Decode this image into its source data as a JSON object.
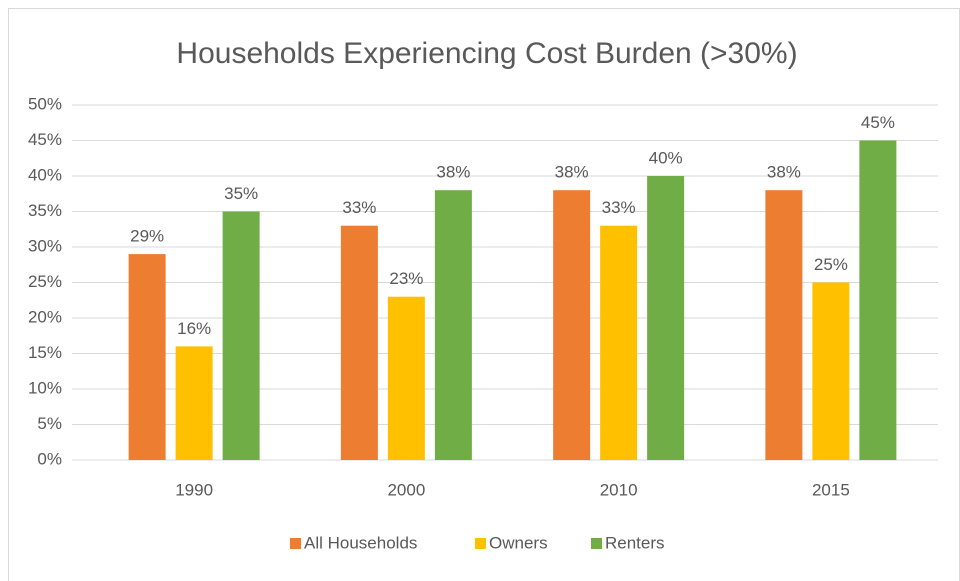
{
  "chart_data": {
    "type": "bar",
    "title": "Households Experiencing Cost Burden (>30%)",
    "categories": [
      "1990",
      "2000",
      "2010",
      "2015"
    ],
    "series": [
      {
        "name": "All Households",
        "color": "#ed7d31",
        "values": [
          29,
          33,
          38,
          38
        ],
        "value_labels": [
          "29%",
          "33%",
          "38%",
          "38%"
        ]
      },
      {
        "name": "Owners",
        "color": "#ffc000",
        "values": [
          16,
          23,
          33,
          25
        ],
        "value_labels": [
          "16%",
          "23%",
          "33%",
          "25%"
        ]
      },
      {
        "name": "Renters",
        "color": "#70ad47",
        "values": [
          35,
          38,
          40,
          45
        ],
        "value_labels": [
          "35%",
          "38%",
          "40%",
          "45%"
        ]
      }
    ],
    "ylim": [
      0,
      50
    ],
    "yticks": [
      {
        "value": 0,
        "label": "0%"
      },
      {
        "value": 5,
        "label": "5%"
      },
      {
        "value": 10,
        "label": "10%"
      },
      {
        "value": 15,
        "label": "15%"
      },
      {
        "value": 20,
        "label": "20%"
      },
      {
        "value": 25,
        "label": "25%"
      },
      {
        "value": 30,
        "label": "30%"
      },
      {
        "value": 35,
        "label": "35%"
      },
      {
        "value": 40,
        "label": "40%"
      },
      {
        "value": 45,
        "label": "45%"
      },
      {
        "value": 50,
        "label": "50%"
      }
    ],
    "grid": true,
    "legend": "bottom"
  }
}
